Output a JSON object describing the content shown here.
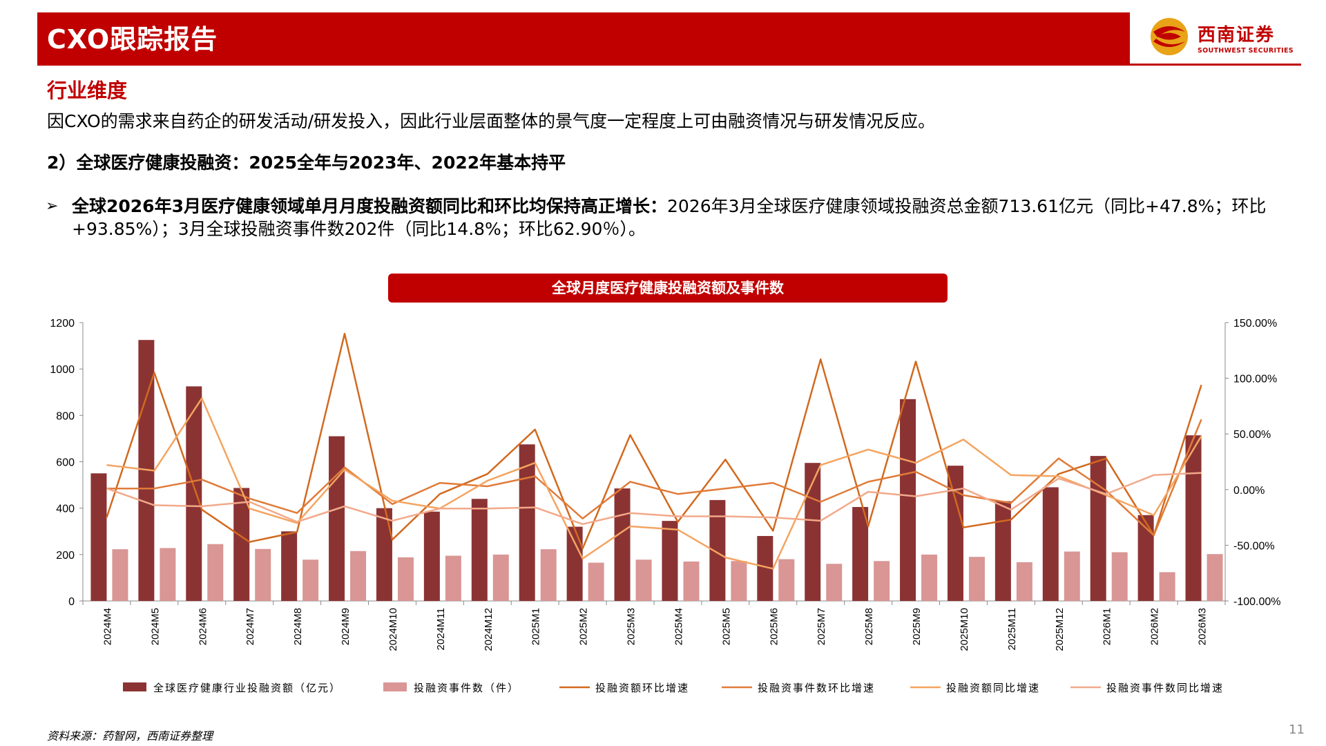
{
  "header": {
    "title": "CXO跟踪报告",
    "logo_cn": "西南证券",
    "logo_en": "SOUTHWEST SECURITIES"
  },
  "section_title": "行业维度",
  "intro": "因CXO的需求来自药企的研发活动/研发投入，因此行业层面整体的景气度一定程度上可由融资情况与研发情况反应。",
  "subheading": "2）全球医疗健康投融资：2025全年与2023年、2022年基本持平",
  "bullet": {
    "mark": "➢",
    "bold": "全球2026年3月医疗健康领域单月月度投融资额同比和环比均保持高正增长：",
    "text": "2026年3月全球医疗健康领域投融资总金额713.61亿元（同比+47.8%；环比+93.85%）；3月全球投融资事件数202件（同比14.8%；环比62.90％）。"
  },
  "chart_title": "全球月度医疗健康投融资额及事件数",
  "source": "资料来源：药智网，西南证券整理",
  "page_number": "11",
  "colors": {
    "brand_red": "#c00000",
    "bar_amount": "#8b3333",
    "bar_count": "#d99694",
    "line_amount_mom": "#d2691e",
    "line_count_mom": "#e07b39",
    "line_amount_yoy": "#f4a460",
    "line_count_yoy": "#f2a98a"
  },
  "chart_data": {
    "type": "bar",
    "categories": [
      "2024M4",
      "2024M5",
      "2024M6",
      "2024M7",
      "2024M8",
      "2024M9",
      "2024M10",
      "2024M11",
      "2024M12",
      "2025M1",
      "2025M2",
      "2025M3",
      "2025M4",
      "2025M5",
      "2025M6",
      "2025M7",
      "2025M8",
      "2025M9",
      "2025M10",
      "2025M11",
      "2025M12",
      "2026M1",
      "2026M2",
      "2026M3"
    ],
    "left_axis": {
      "ylim": [
        0,
        1200
      ],
      "ticks": [
        "0",
        "200",
        "400",
        "600",
        "800",
        "1000",
        "1200"
      ]
    },
    "right_axis": {
      "ylim": [
        -100,
        150
      ],
      "ticks": [
        "-100.00%",
        "-50.00%",
        "0.00%",
        "50.00%",
        "100.00%",
        "150.00%"
      ]
    },
    "series": [
      {
        "name": "全球医疗健康行业投融资额（亿元）",
        "type": "bar",
        "axis": "left",
        "values": [
          550,
          1125,
          925,
          487,
          300,
          710,
          400,
          385,
          440,
          675,
          320,
          485,
          345,
          435,
          280,
          595,
          405,
          870,
          583,
          430,
          490,
          625,
          370,
          714
        ]
      },
      {
        "name": "投融资事件数（件）",
        "type": "bar",
        "axis": "left",
        "values": [
          223,
          228,
          245,
          224,
          178,
          215,
          188,
          195,
          200,
          223,
          165,
          178,
          170,
          172,
          180,
          160,
          172,
          200,
          190,
          167,
          213,
          210,
          124,
          202
        ]
      },
      {
        "name": "投融资额环比增速",
        "type": "line",
        "axis": "right",
        "values": [
          -25,
          105,
          -18,
          -47,
          -38,
          140,
          -45,
          -4,
          14,
          54,
          -53,
          49,
          -29,
          27,
          -37,
          117,
          -33,
          115,
          -34,
          -27,
          14,
          28,
          -41,
          94
        ]
      },
      {
        "name": "投融资事件数环比增速",
        "type": "line",
        "axis": "right",
        "values": [
          1,
          1,
          9,
          -8,
          -21,
          20,
          -13,
          6,
          3,
          12,
          -26,
          7,
          -4,
          1,
          6,
          -11,
          7,
          16,
          -5,
          -12,
          28,
          -1,
          -41,
          63
        ]
      },
      {
        "name": "投融资额同比增速",
        "type": "line",
        "axis": "right",
        "values": [
          22,
          17,
          82,
          -17,
          -30,
          18,
          -10,
          -17,
          8,
          24,
          -62,
          -33,
          -36,
          -61,
          -71,
          22,
          36,
          24,
          45,
          13,
          12,
          -5,
          -23,
          48
        ]
      },
      {
        "name": "投融资事件数同比增速",
        "type": "line",
        "axis": "right",
        "values": [
          1,
          -14,
          -15,
          -11,
          -29,
          -15,
          -28,
          -17,
          -17,
          -16,
          -31,
          -21,
          -24,
          -24,
          -25,
          -28,
          -2,
          -6,
          1,
          -18,
          10,
          -4,
          13,
          15
        ]
      }
    ]
  }
}
